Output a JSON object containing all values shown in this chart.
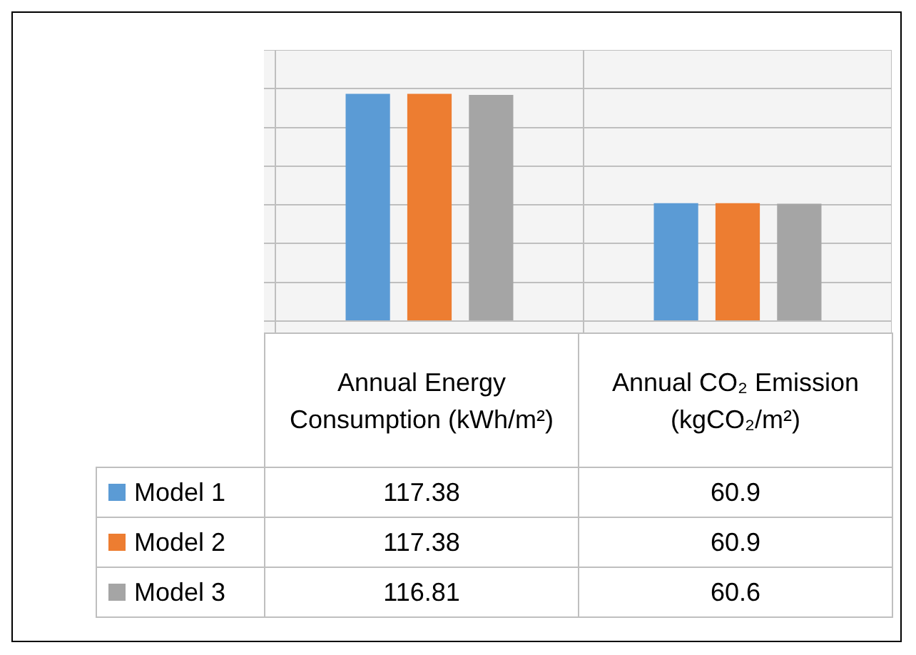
{
  "chart_data": {
    "type": "bar",
    "categories": [
      "Annual Energy Consumption (kWh/m²)",
      "Annual CO₂ Emission (kgCO₂/m²)"
    ],
    "series": [
      {
        "name": "Model 1",
        "color": "#5b9bd5",
        "values": [
          117.38,
          60.9
        ]
      },
      {
        "name": "Model 2",
        "color": "#ed7d31",
        "values": [
          117.38,
          60.9
        ]
      },
      {
        "name": "Model 3",
        "color": "#a5a5a5",
        "values": [
          116.81,
          60.6
        ]
      }
    ],
    "ylim": [
      0,
      140
    ],
    "yticks": [
      {
        "value": 0,
        "label": null
      },
      {
        "value": 20,
        "label": null
      },
      {
        "value": 40,
        "label": null
      },
      {
        "value": 60,
        "label": null
      },
      {
        "value": 80,
        "label": null
      },
      {
        "value": 100,
        "label": null
      },
      {
        "value": 120,
        "label": null
      },
      {
        "value": 140,
        "label": null
      }
    ],
    "tick_labels": "x",
    "grid": true,
    "legend": "bottom",
    "data_labels": true
  }
}
